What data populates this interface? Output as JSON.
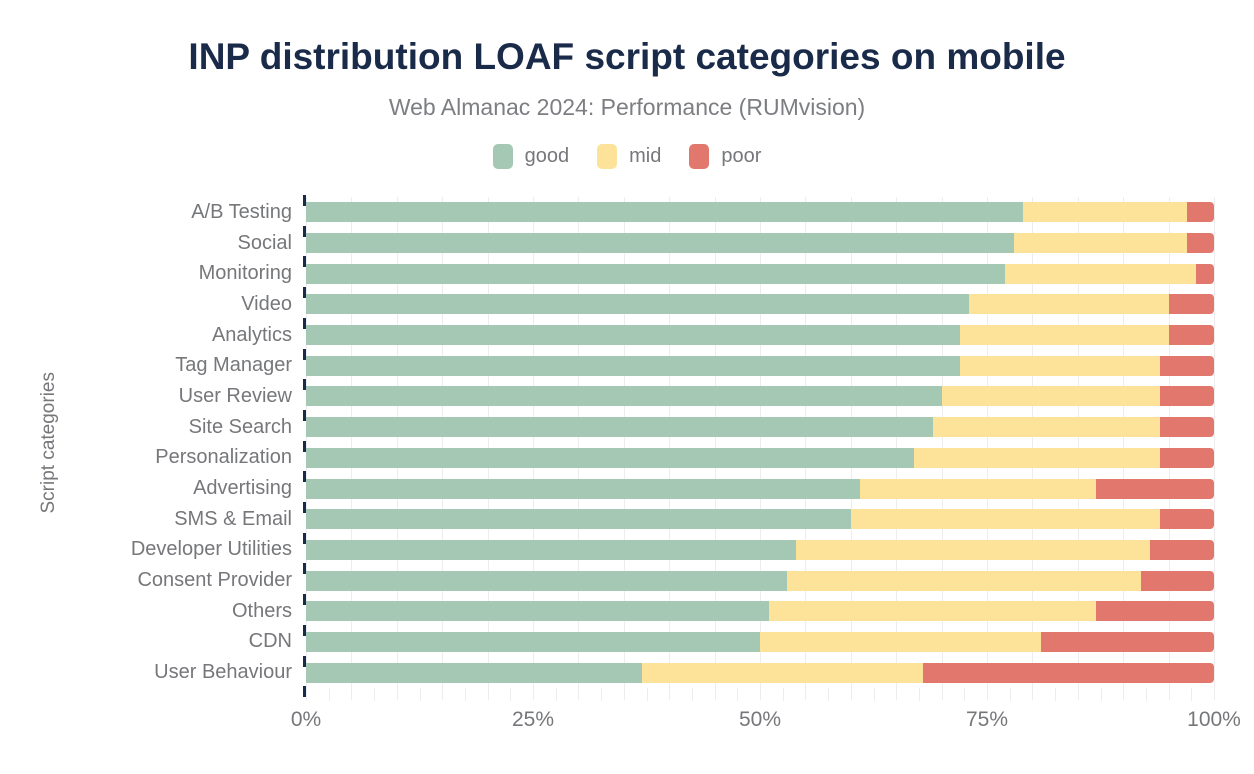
{
  "title": "INP distribution LOAF script categories on mobile",
  "subtitle": "Web Almanac 2024: Performance (RUMvision)",
  "colors": {
    "title_navy": "#1a2b4a",
    "axis_text_gray": "#76777a",
    "gridline": "#ededed",
    "good": "#a5c8b4",
    "mid": "#fde299",
    "poor": "#e2776d"
  },
  "legend": {
    "items": [
      {
        "label": "good",
        "color": "#a5c8b4"
      },
      {
        "label": "mid",
        "color": "#fde299"
      },
      {
        "label": "poor",
        "color": "#e2776d"
      }
    ]
  },
  "chart_data": {
    "type": "bar",
    "orientation": "horizontal",
    "stacked": true,
    "unit": "percent",
    "title": "INP distribution LOAF script categories on mobile",
    "subtitle": "Web Almanac 2024: Performance (RUMvision)",
    "xlabel": "",
    "ylabel": "Script categories",
    "xlim": [
      0,
      100
    ],
    "x_ticks": [
      "0%",
      "25%",
      "50%",
      "75%",
      "100%"
    ],
    "grid": "vertical, every 5%",
    "legend_position": "top center",
    "categories": [
      "A/B Testing",
      "Social",
      "Monitoring",
      "Video",
      "Analytics",
      "Tag Manager",
      "User Review",
      "Site Search",
      "Personalization",
      "Advertising",
      "SMS & Email",
      "Developer Utilities",
      "Consent Provider",
      "Others",
      "CDN",
      "User Behaviour"
    ],
    "series": [
      {
        "name": "good",
        "color": "#a5c8b4",
        "values": [
          79,
          78,
          77,
          73,
          72,
          72,
          70,
          69,
          67,
          61,
          60,
          54,
          53,
          51,
          50,
          37
        ]
      },
      {
        "name": "mid",
        "color": "#fde299",
        "values": [
          18,
          19,
          21,
          22,
          23,
          22,
          24,
          25,
          27,
          26,
          34,
          39,
          39,
          36,
          31,
          31
        ]
      },
      {
        "name": "poor",
        "color": "#e2776d",
        "values": [
          3,
          3,
          2,
          5,
          5,
          6,
          6,
          6,
          6,
          13,
          6,
          7,
          8,
          13,
          19,
          32
        ]
      }
    ]
  }
}
